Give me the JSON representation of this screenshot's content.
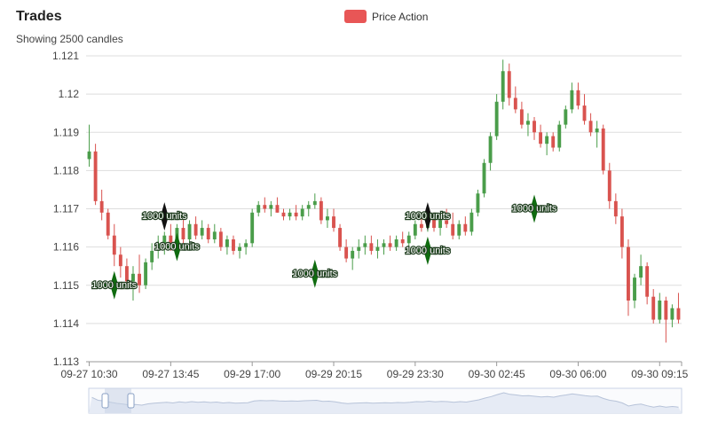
{
  "header": {
    "title": "Trades",
    "subtitle": "Showing 2500 candles"
  },
  "legend": {
    "label": "Price Action",
    "color": "#e85656"
  },
  "colors": {
    "up": "#4a9d4a",
    "down": "#d9534f",
    "buy_marker": "#0f6b0f",
    "sell_marker": "#111111",
    "grid": "#dddddd",
    "navigator": "#c9d3e6"
  },
  "chart_data": {
    "type": "candlestick",
    "title": "Trades",
    "subtitle": "Showing 2500 candles",
    "ylim": [
      1.113,
      1.121
    ],
    "yticks": [
      "1.113",
      "1.114",
      "1.115",
      "1.116",
      "1.117",
      "1.118",
      "1.119",
      "1.12",
      "1.121"
    ],
    "xticks": [
      {
        "index": 0,
        "label": "09-27 10:30"
      },
      {
        "index": 13,
        "label": "09-27 13:45"
      },
      {
        "index": 26,
        "label": "09-29 17:00"
      },
      {
        "index": 39,
        "label": "09-29 20:15"
      },
      {
        "index": 52,
        "label": "09-29 23:30"
      },
      {
        "index": 65,
        "label": "09-30 02:45"
      },
      {
        "index": 78,
        "label": "09-30 06:00"
      },
      {
        "index": 91,
        "label": "09-30 09:15"
      }
    ],
    "grid": true,
    "legend_position": "top-center",
    "series_name": "Price Action",
    "candles": [
      [
        1.1183,
        1.1192,
        1.1181,
        1.1185
      ],
      [
        1.1185,
        1.1187,
        1.1171,
        1.1172
      ],
      [
        1.1172,
        1.1175,
        1.1167,
        1.1169
      ],
      [
        1.1169,
        1.117,
        1.1162,
        1.1163
      ],
      [
        1.1163,
        1.1166,
        1.1155,
        1.1158
      ],
      [
        1.1158,
        1.116,
        1.1152,
        1.1155
      ],
      [
        1.1155,
        1.1157,
        1.1149,
        1.1151
      ],
      [
        1.1151,
        1.1155,
        1.1146,
        1.1153
      ],
      [
        1.1153,
        1.1158,
        1.1148,
        1.115
      ],
      [
        1.115,
        1.1157,
        1.1149,
        1.1156
      ],
      [
        1.1156,
        1.1161,
        1.1154,
        1.1159
      ],
      [
        1.1159,
        1.1163,
        1.1157,
        1.1161
      ],
      [
        1.1161,
        1.1164,
        1.1158,
        1.1163
      ],
      [
        1.1163,
        1.1166,
        1.1159,
        1.116
      ],
      [
        1.116,
        1.1166,
        1.1159,
        1.1165
      ],
      [
        1.1165,
        1.1168,
        1.1161,
        1.1162
      ],
      [
        1.1162,
        1.1167,
        1.1161,
        1.1166
      ],
      [
        1.1166,
        1.1168,
        1.1162,
        1.1163
      ],
      [
        1.1163,
        1.1167,
        1.1162,
        1.1165
      ],
      [
        1.1165,
        1.1166,
        1.1161,
        1.1162
      ],
      [
        1.1162,
        1.1166,
        1.1161,
        1.1164
      ],
      [
        1.1164,
        1.1165,
        1.1159,
        1.116
      ],
      [
        1.116,
        1.1163,
        1.1158,
        1.1162
      ],
      [
        1.1162,
        1.1163,
        1.1158,
        1.1159
      ],
      [
        1.1159,
        1.1161,
        1.1157,
        1.116
      ],
      [
        1.116,
        1.1162,
        1.1158,
        1.1161
      ],
      [
        1.1161,
        1.117,
        1.116,
        1.1169
      ],
      [
        1.1169,
        1.1172,
        1.1168,
        1.1171
      ],
      [
        1.1171,
        1.1173,
        1.1169,
        1.117
      ],
      [
        1.117,
        1.1172,
        1.1168,
        1.1171
      ],
      [
        1.1171,
        1.1173,
        1.1169,
        1.1169
      ],
      [
        1.1169,
        1.117,
        1.1167,
        1.1168
      ],
      [
        1.1168,
        1.117,
        1.1167,
        1.1169
      ],
      [
        1.1169,
        1.1171,
        1.1167,
        1.1168
      ],
      [
        1.1168,
        1.1171,
        1.1167,
        1.117
      ],
      [
        1.117,
        1.1172,
        1.1168,
        1.1171
      ],
      [
        1.1171,
        1.1174,
        1.117,
        1.1172
      ],
      [
        1.1172,
        1.1173,
        1.1166,
        1.1167
      ],
      [
        1.1167,
        1.117,
        1.1165,
        1.1168
      ],
      [
        1.1168,
        1.117,
        1.1164,
        1.1165
      ],
      [
        1.1165,
        1.1166,
        1.1159,
        1.116
      ],
      [
        1.116,
        1.1162,
        1.1156,
        1.1157
      ],
      [
        1.1157,
        1.116,
        1.1154,
        1.1159
      ],
      [
        1.1159,
        1.1162,
        1.1157,
        1.116
      ],
      [
        1.116,
        1.1163,
        1.1158,
        1.1161
      ],
      [
        1.1161,
        1.1163,
        1.1158,
        1.1159
      ],
      [
        1.1159,
        1.1162,
        1.1157,
        1.116
      ],
      [
        1.116,
        1.1162,
        1.1158,
        1.1161
      ],
      [
        1.1161,
        1.1163,
        1.1159,
        1.116
      ],
      [
        1.116,
        1.1163,
        1.1159,
        1.1162
      ],
      [
        1.1162,
        1.1164,
        1.116,
        1.1161
      ],
      [
        1.1161,
        1.1164,
        1.116,
        1.1163
      ],
      [
        1.1163,
        1.1167,
        1.1162,
        1.1166
      ],
      [
        1.1166,
        1.1169,
        1.1164,
        1.1165
      ],
      [
        1.1165,
        1.1169,
        1.1164,
        1.1168
      ],
      [
        1.1168,
        1.1169,
        1.1164,
        1.1165
      ],
      [
        1.1165,
        1.1168,
        1.1163,
        1.1167
      ],
      [
        1.1167,
        1.117,
        1.1165,
        1.1166
      ],
      [
        1.1166,
        1.1169,
        1.1162,
        1.1163
      ],
      [
        1.1163,
        1.1167,
        1.1162,
        1.1166
      ],
      [
        1.1166,
        1.1168,
        1.1163,
        1.1164
      ],
      [
        1.1164,
        1.117,
        1.1163,
        1.1169
      ],
      [
        1.1169,
        1.1175,
        1.1168,
        1.1174
      ],
      [
        1.1174,
        1.1183,
        1.1173,
        1.1182
      ],
      [
        1.1182,
        1.119,
        1.118,
        1.1189
      ],
      [
        1.1189,
        1.12,
        1.1188,
        1.1198
      ],
      [
        1.1198,
        1.1209,
        1.1196,
        1.1206
      ],
      [
        1.1206,
        1.1208,
        1.1197,
        1.1199
      ],
      [
        1.1199,
        1.1202,
        1.1195,
        1.1196
      ],
      [
        1.1196,
        1.1198,
        1.1191,
        1.1192
      ],
      [
        1.1192,
        1.1195,
        1.1189,
        1.1193
      ],
      [
        1.1193,
        1.1194,
        1.1188,
        1.119
      ],
      [
        1.119,
        1.1192,
        1.1186,
        1.1187
      ],
      [
        1.1187,
        1.119,
        1.1184,
        1.1189
      ],
      [
        1.1189,
        1.119,
        1.1185,
        1.1186
      ],
      [
        1.1186,
        1.1193,
        1.1185,
        1.1192
      ],
      [
        1.1192,
        1.1197,
        1.1191,
        1.1196
      ],
      [
        1.1196,
        1.1203,
        1.1195,
        1.1201
      ],
      [
        1.1201,
        1.1203,
        1.1196,
        1.1197
      ],
      [
        1.1197,
        1.12,
        1.1192,
        1.1193
      ],
      [
        1.1193,
        1.1195,
        1.1189,
        1.119
      ],
      [
        1.119,
        1.1193,
        1.1186,
        1.1191
      ],
      [
        1.1191,
        1.1192,
        1.1179,
        1.118
      ],
      [
        1.118,
        1.1182,
        1.117,
        1.1172
      ],
      [
        1.1172,
        1.1174,
        1.1166,
        1.1168
      ],
      [
        1.1168,
        1.117,
        1.1157,
        1.116
      ],
      [
        1.116,
        1.1162,
        1.1142,
        1.1146
      ],
      [
        1.1146,
        1.1153,
        1.1144,
        1.1152
      ],
      [
        1.1152,
        1.1158,
        1.115,
        1.1155
      ],
      [
        1.1155,
        1.1156,
        1.1145,
        1.1147
      ],
      [
        1.1147,
        1.1149,
        1.114,
        1.1141
      ],
      [
        1.1141,
        1.1148,
        1.114,
        1.1146
      ],
      [
        1.1146,
        1.1147,
        1.1135,
        1.1141
      ],
      [
        1.1141,
        1.1145,
        1.1139,
        1.1144
      ],
      [
        1.1144,
        1.1148,
        1.114,
        1.1141
      ]
    ],
    "markers": [
      {
        "index": 12,
        "price": 1.1168,
        "side": "sell",
        "label": "1000 units"
      },
      {
        "index": 14,
        "price": 1.116,
        "side": "buy",
        "label": "1000 units"
      },
      {
        "index": 4,
        "price": 1.115,
        "side": "buy",
        "label": "1000 units"
      },
      {
        "index": 36,
        "price": 1.1153,
        "side": "buy",
        "label": "1000 units"
      },
      {
        "index": 54,
        "price": 1.1168,
        "side": "sell",
        "label": "1000 units"
      },
      {
        "index": 54,
        "price": 1.1159,
        "side": "buy",
        "label": "1000 units"
      },
      {
        "index": 71,
        "price": 1.117,
        "side": "buy",
        "label": "1000 units"
      }
    ]
  }
}
